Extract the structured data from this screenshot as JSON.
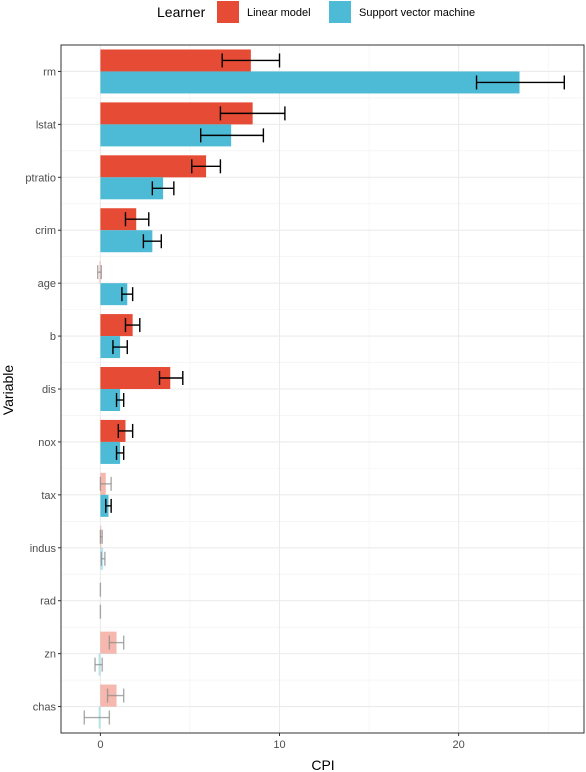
{
  "chart_data": {
    "type": "bar",
    "orientation": "horizontal",
    "xlabel": "CPI",
    "ylabel": "Variable",
    "xlim": [
      -2.2,
      27.0
    ],
    "x_ticks": [
      0,
      10,
      20
    ],
    "grid": true,
    "legend": {
      "title": "Learner",
      "position": "top"
    },
    "categories": [
      "rm",
      "lstat",
      "ptratio",
      "crim",
      "age",
      "b",
      "dis",
      "nox",
      "tax",
      "indus",
      "rad",
      "zn",
      "chas"
    ],
    "series": [
      {
        "name": "Linear model",
        "color": "#E64B35",
        "values": [
          8.4,
          8.5,
          5.9,
          2.0,
          -0.05,
          1.8,
          3.9,
          1.4,
          0.3,
          0.05,
          0.0,
          0.9,
          0.9
        ],
        "error_low": [
          6.8,
          6.7,
          5.1,
          1.4,
          -0.15,
          1.4,
          3.3,
          1.0,
          0.0,
          0.0,
          0.0,
          0.5,
          0.4
        ],
        "error_high": [
          10.0,
          10.3,
          6.7,
          2.7,
          0.05,
          2.2,
          4.6,
          1.8,
          0.6,
          0.1,
          0.0,
          1.3,
          1.3
        ],
        "significant": [
          true,
          true,
          true,
          true,
          false,
          true,
          true,
          true,
          false,
          false,
          false,
          false,
          false
        ]
      },
      {
        "name": "Support vector machine",
        "color": "#4DBBD5",
        "values": [
          23.4,
          7.3,
          3.5,
          2.9,
          1.5,
          1.1,
          1.1,
          1.1,
          0.45,
          0.15,
          0.0,
          -0.1,
          -0.1
        ],
        "error_low": [
          21.0,
          5.6,
          2.9,
          2.4,
          1.2,
          0.7,
          0.9,
          0.9,
          0.3,
          0.05,
          0.0,
          -0.3,
          -0.9
        ],
        "error_high": [
          25.9,
          9.1,
          4.1,
          3.4,
          1.8,
          1.5,
          1.3,
          1.3,
          0.6,
          0.25,
          0.0,
          0.1,
          0.5
        ],
        "significant": [
          true,
          true,
          true,
          true,
          true,
          true,
          true,
          true,
          true,
          false,
          false,
          false,
          false
        ]
      }
    ]
  }
}
